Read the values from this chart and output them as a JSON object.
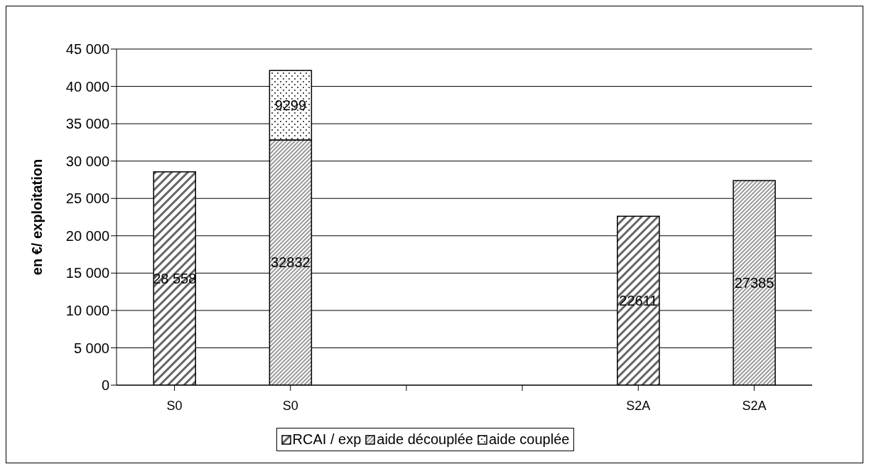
{
  "chart_data": {
    "type": "bar",
    "stacked": true,
    "ylabel": "en €/ exploitation",
    "categories": [
      "S0",
      "S0",
      null,
      null,
      "S2A",
      "S2A"
    ],
    "series": [
      {
        "name": "RCAI / exp",
        "color": "#000000",
        "values": [
          28558,
          null,
          null,
          null,
          22611,
          null
        ],
        "value_labels": [
          "28 558",
          null,
          null,
          null,
          "22611",
          null
        ]
      },
      {
        "name": "aide découplée",
        "color": "#000000",
        "values": [
          null,
          32832,
          null,
          null,
          null,
          27385
        ],
        "value_labels": [
          null,
          "32832",
          null,
          null,
          null,
          "27385"
        ]
      },
      {
        "name": "aide couplée",
        "color": "#000000",
        "values": [
          null,
          9299,
          null,
          null,
          null,
          null
        ],
        "value_labels": [
          null,
          "9299",
          null,
          null,
          null,
          null
        ]
      }
    ],
    "ylim": [
      0,
      45000
    ],
    "yticks": [
      {
        "value": 0,
        "label": "0"
      },
      {
        "value": 5000,
        "label": "5 000"
      },
      {
        "value": 10000,
        "label": "10 000"
      },
      {
        "value": 15000,
        "label": "15 000"
      },
      {
        "value": 20000,
        "label": "20 000"
      },
      {
        "value": 25000,
        "label": "25 000"
      },
      {
        "value": 30000,
        "label": "30 000"
      },
      {
        "value": 35000,
        "label": "35 000"
      },
      {
        "value": 40000,
        "label": "40 000"
      },
      {
        "value": 45000,
        "label": "45 000"
      }
    ],
    "grid": "y",
    "legend": "bottom"
  }
}
